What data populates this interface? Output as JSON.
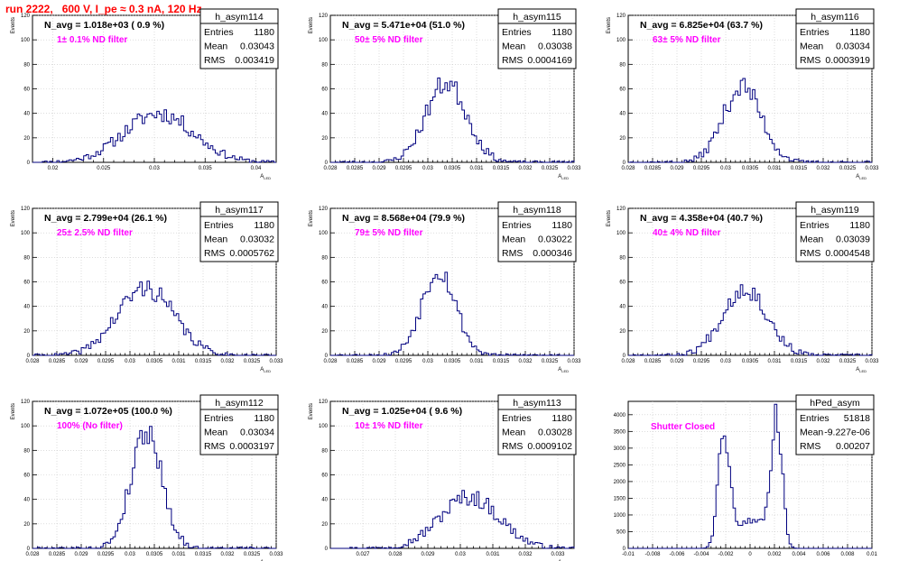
{
  "header": {
    "title": "run 2222,   600 V, I_pe ≈ 0.3 nA, 120 Hz"
  },
  "colors": {
    "title": "#ff0000",
    "histogram": "#00007f",
    "annotation": "#ff00ff"
  },
  "chart_data": [
    {
      "type": "bar",
      "name": "h_asym114",
      "stats": {
        "entries_label": "Entries",
        "entries": "1180",
        "mean_label": "Mean",
        "mean": "0.03043",
        "rms_label": "RMS",
        "rms": "0.003419"
      },
      "n_avg_text": "N_avg = 1.018e+03 ( 0.9 %)",
      "filter_text": "1± 0.1% ND filter",
      "xlabel": "A_LED",
      "ylabel": "Events",
      "xlim": [
        0.018,
        0.042
      ],
      "ylim": [
        0,
        120
      ],
      "xticks": [
        "0.02",
        "0.025",
        "0.03",
        "0.035",
        "0.04"
      ],
      "xtick_values": [
        0.02,
        0.025,
        0.03,
        0.035,
        0.04
      ],
      "yticks": [
        0,
        20,
        40,
        60,
        80,
        100,
        120
      ],
      "mean": 0.03043,
      "rms": 0.003419,
      "peak": 40,
      "shape": "gauss",
      "seed": 11
    },
    {
      "type": "bar",
      "name": "h_asym115",
      "stats": {
        "entries_label": "Entries",
        "entries": "1180",
        "mean_label": "Mean",
        "mean": "0.03038",
        "rms_label": "RMS",
        "rms": "0.0004169"
      },
      "n_avg_text": "N_avg = 5.471e+04 (51.0 %)",
      "filter_text": "50± 5% ND filter",
      "xlabel": "A_LED",
      "ylabel": "Events",
      "xlim": [
        0.028,
        0.033
      ],
      "ylim": [
        0,
        120
      ],
      "xticks": [
        "0.028",
        "0.0285",
        "0.029",
        "0.0295",
        "0.03",
        "0.0305",
        "0.031",
        "0.0315",
        "0.032",
        "0.0325",
        "0.033"
      ],
      "xtick_values": [
        0.028,
        0.0285,
        0.029,
        0.0295,
        0.03,
        0.0305,
        0.031,
        0.0315,
        0.032,
        0.0325,
        0.033
      ],
      "yticks": [
        0,
        20,
        40,
        60,
        80,
        100,
        120
      ],
      "mean": 0.03038,
      "rms": 0.0004169,
      "peak": 65,
      "shape": "gauss",
      "seed": 23
    },
    {
      "type": "bar",
      "name": "h_asym116",
      "stats": {
        "entries_label": "Entries",
        "entries": "1180",
        "mean_label": "Mean",
        "mean": "0.03034",
        "rms_label": "RMS",
        "rms": "0.0003919"
      },
      "n_avg_text": "N_avg = 6.825e+04 (63.7 %)",
      "filter_text": "63± 5% ND filter",
      "xlabel": "A_LED",
      "ylabel": "Events",
      "xlim": [
        0.028,
        0.033
      ],
      "ylim": [
        0,
        120
      ],
      "xticks": [
        "0.028",
        "0.0285",
        "0.029",
        "0.0295",
        "0.03",
        "0.0305",
        "0.031",
        "0.0315",
        "0.032",
        "0.0325",
        "0.033"
      ],
      "xtick_values": [
        0.028,
        0.0285,
        0.029,
        0.0295,
        0.03,
        0.0305,
        0.031,
        0.0315,
        0.032,
        0.0325,
        0.033
      ],
      "yticks": [
        0,
        20,
        40,
        60,
        80,
        100,
        120
      ],
      "mean": 0.03034,
      "rms": 0.0003919,
      "peak": 62,
      "shape": "gauss",
      "seed": 37
    },
    {
      "type": "bar",
      "name": "h_asym117",
      "stats": {
        "entries_label": "Entries",
        "entries": "1180",
        "mean_label": "Mean",
        "mean": "0.03032",
        "rms_label": "RMS",
        "rms": "0.0005762"
      },
      "n_avg_text": "N_avg = 2.799e+04 (26.1 %)",
      "filter_text": "25± 2.5% ND filter",
      "xlabel": "A_LED",
      "ylabel": "Events",
      "xlim": [
        0.028,
        0.033
      ],
      "ylim": [
        0,
        120
      ],
      "xticks": [
        "0.028",
        "0.0285",
        "0.029",
        "0.0295",
        "0.03",
        "0.0305",
        "0.031",
        "0.0315",
        "0.032",
        "0.0325",
        "0.033"
      ],
      "xtick_values": [
        0.028,
        0.0285,
        0.029,
        0.0295,
        0.03,
        0.0305,
        0.031,
        0.0315,
        0.032,
        0.0325,
        0.033
      ],
      "yticks": [
        0,
        20,
        40,
        60,
        80,
        100,
        120
      ],
      "mean": 0.03032,
      "rms": 0.0005762,
      "peak": 55,
      "shape": "gauss",
      "seed": 41
    },
    {
      "type": "bar",
      "name": "h_asym118",
      "stats": {
        "entries_label": "Entries",
        "entries": "1180",
        "mean_label": "Mean",
        "mean": "0.03022",
        "rms_label": "RMS",
        "rms": "0.000346"
      },
      "n_avg_text": "N_avg = 8.568e+04 (79.9 %)",
      "filter_text": "79± 5% ND filter",
      "xlabel": "A_LED",
      "ylabel": "Events",
      "xlim": [
        0.028,
        0.033
      ],
      "ylim": [
        0,
        120
      ],
      "xticks": [
        "0.028",
        "0.0285",
        "0.029",
        "0.0295",
        "0.03",
        "0.0305",
        "0.031",
        "0.0315",
        "0.032",
        "0.0325",
        "0.033"
      ],
      "xtick_values": [
        0.028,
        0.0285,
        0.029,
        0.0295,
        0.03,
        0.0305,
        0.031,
        0.0315,
        0.032,
        0.0325,
        0.033
      ],
      "yticks": [
        0,
        20,
        40,
        60,
        80,
        100,
        120
      ],
      "mean": 0.03022,
      "rms": 0.000346,
      "peak": 70,
      "shape": "gauss",
      "seed": 53
    },
    {
      "type": "bar",
      "name": "h_asym119",
      "stats": {
        "entries_label": "Entries",
        "entries": "1180",
        "mean_label": "Mean",
        "mean": "0.03039",
        "rms_label": "RMS",
        "rms": "0.0004548"
      },
      "n_avg_text": "N_avg = 4.358e+04 (40.7 %)",
      "filter_text": "40± 4% ND filter",
      "xlabel": "A_LED",
      "ylabel": "Events",
      "xlim": [
        0.028,
        0.033
      ],
      "ylim": [
        0,
        120
      ],
      "xticks": [
        "0.028",
        "0.0285",
        "0.029",
        "0.0295",
        "0.03",
        "0.0305",
        "0.031",
        "0.0315",
        "0.032",
        "0.0325",
        "0.033"
      ],
      "xtick_values": [
        0.028,
        0.0285,
        0.029,
        0.0295,
        0.03,
        0.0305,
        0.031,
        0.0315,
        0.032,
        0.0325,
        0.033
      ],
      "yticks": [
        0,
        20,
        40,
        60,
        80,
        100,
        120
      ],
      "mean": 0.03039,
      "rms": 0.0004548,
      "peak": 55,
      "shape": "gauss",
      "seed": 67
    },
    {
      "type": "bar",
      "name": "h_asym112",
      "stats": {
        "entries_label": "Entries",
        "entries": "1180",
        "mean_label": "Mean",
        "mean": "0.03034",
        "rms_label": "RMS",
        "rms": "0.0003197"
      },
      "n_avg_text": "N_avg = 1.072e+05 (100.0 %)",
      "filter_text": "100% (No filter)",
      "xlabel": "A_LED",
      "ylabel": "Events",
      "xlim": [
        0.028,
        0.033
      ],
      "ylim": [
        0,
        120
      ],
      "xticks": [
        "0.028",
        "0.0285",
        "0.029",
        "0.0295",
        "0.03",
        "0.0305",
        "0.031",
        "0.0315",
        "0.032",
        "0.0325",
        "0.033"
      ],
      "xtick_values": [
        0.028,
        0.0285,
        0.029,
        0.0295,
        0.03,
        0.0305,
        0.031,
        0.0315,
        0.032,
        0.0325,
        0.033
      ],
      "yticks": [
        0,
        20,
        40,
        60,
        80,
        100,
        120
      ],
      "mean": 0.03034,
      "rms": 0.0003197,
      "peak": 96,
      "shape": "gauss",
      "seed": 79
    },
    {
      "type": "bar",
      "name": "h_asym113",
      "stats": {
        "entries_label": "Entries",
        "entries": "1180",
        "mean_label": "Mean",
        "mean": "0.03028",
        "rms_label": "RMS",
        "rms": "0.0009102"
      },
      "n_avg_text": "N_avg = 1.025e+04 ( 9.6 %)",
      "filter_text": "10± 1% ND filter",
      "xlabel": "A_LED",
      "ylabel": "Events",
      "xlim": [
        0.026,
        0.0335
      ],
      "ylim": [
        0,
        120
      ],
      "xticks": [
        "0.027",
        "0.028",
        "0.029",
        "0.03",
        "0.031",
        "0.032",
        "0.033"
      ],
      "xtick_values": [
        0.027,
        0.028,
        0.029,
        0.03,
        0.031,
        0.032,
        0.033
      ],
      "yticks": [
        0,
        20,
        40,
        60,
        80,
        100,
        120
      ],
      "mean": 0.03028,
      "rms": 0.0009102,
      "peak": 42,
      "shape": "gauss",
      "seed": 97
    },
    {
      "type": "bar",
      "name": "hPed_asym",
      "stats": {
        "entries_label": "Entries",
        "entries": "51818",
        "mean_label": "Mean",
        "mean": "-9.227e-06",
        "rms_label": "RMS",
        "rms": "0.00207"
      },
      "n_avg_text": "",
      "filter_text": "Shutter Closed",
      "xlabel": "",
      "ylabel": "",
      "xlim": [
        -0.01,
        0.01
      ],
      "ylim": [
        0,
        4400
      ],
      "xticks": [
        "-0.01",
        "-0.008",
        "-0.006",
        "-0.004",
        "-0.002",
        "0",
        "0.002",
        "0.004",
        "0.006",
        "0.008",
        "0.01"
      ],
      "xtick_values": [
        -0.01,
        -0.008,
        -0.006,
        -0.004,
        -0.002,
        0,
        0.002,
        0.004,
        0.006,
        0.008,
        0.01
      ],
      "yticks": [
        0,
        500,
        1000,
        1500,
        2000,
        2500,
        3000,
        3500,
        4000
      ],
      "mean": -9.2e-06,
      "rms": 0.00207,
      "peak": 4150,
      "shape": "bimodal",
      "seed": 131
    }
  ]
}
